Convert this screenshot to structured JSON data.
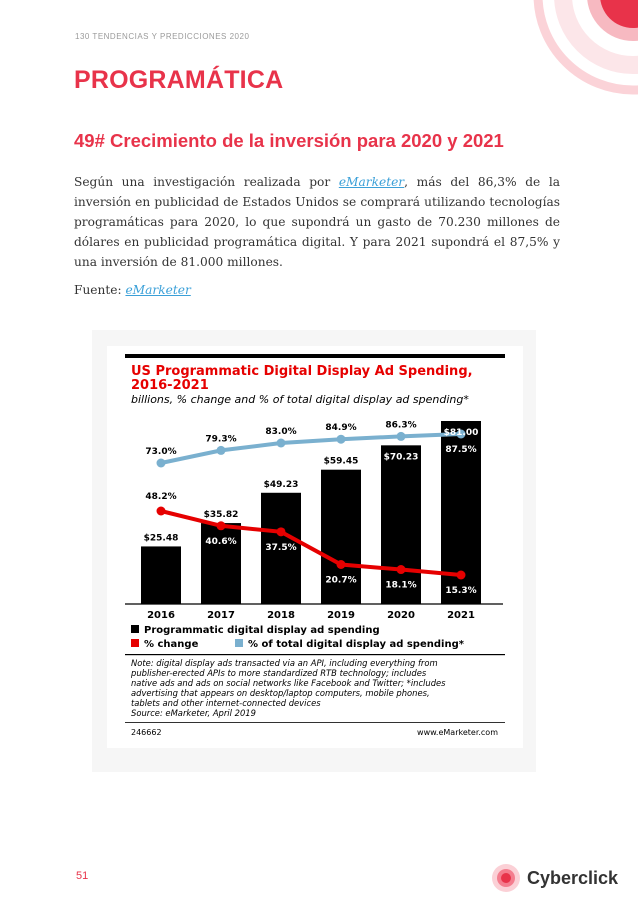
{
  "header": {
    "doc_label": "130 TENDENCIAS Y PREDICCIONES 2020"
  },
  "section": {
    "title": "PROGRAMÁTICA"
  },
  "subsection": {
    "title": "49# Crecimiento de la inversión para 2020 y 2021"
  },
  "body": {
    "part1": "Según una investigación realizada por ",
    "link": "eMarketer",
    "part2": ", más del 86,3% de la inversión en publicidad de Estados Unidos se comprará utilizando tecnologías programáticas para 2020, lo que supondrá un gasto de 70.230 millones de dólares en publicidad programática digital. Y para 2021 supondrá el 87,5% y una inversión de 81.000 millones."
  },
  "source": {
    "label": "Fuente: ",
    "link": "eMarketer"
  },
  "chart_data": {
    "type": "bar",
    "title_line1": "US Programmatic Digital Display Ad Spending,",
    "title_line2": "2016-2021",
    "subtitle": "billions, % change and % of total digital display ad spending*",
    "categories": [
      "2016",
      "2017",
      "2018",
      "2019",
      "2020",
      "2021"
    ],
    "series": [
      {
        "name": "Programmatic digital display ad spending",
        "values": [
          25.48,
          35.82,
          49.23,
          59.45,
          70.23,
          81.0
        ],
        "labels": [
          "$25.48",
          "$35.82",
          "$49.23",
          "$59.45",
          "$70.23",
          "$81.00"
        ],
        "color": "#000000"
      },
      {
        "name": "% change",
        "values": [
          48.2,
          40.6,
          37.5,
          20.7,
          18.1,
          15.3
        ],
        "labels": [
          "48.2%",
          "40.6%",
          "37.5%",
          "20.7%",
          "18.1%",
          "15.3%"
        ],
        "color": "#e60000"
      },
      {
        "name": "% of total digital display ad spending*",
        "values": [
          73.0,
          79.3,
          83.0,
          84.9,
          86.3,
          87.5
        ],
        "labels": [
          "73.0%",
          "79.3%",
          "83.0%",
          "84.9%",
          "86.3%",
          "87.5%"
        ],
        "color": "#7ab0cf"
      }
    ],
    "note_lines": [
      "Note: digital display ads transacted via an API, including everything from",
      "publisher-erected APIs to more standardized RTB technology; includes",
      "native ads and ads on social networks like Facebook and Twitter; *includes",
      "advertising that appears on desktop/laptop computers, mobile phones,",
      "tablets and other internet-connected devices",
      "Source: eMarketer, April 2019"
    ],
    "chart_id": "246662",
    "site": "www.eMarketer.com",
    "title_color": "#e60000"
  },
  "footer": {
    "page_number": "51",
    "logo_text": "Cyberclick"
  },
  "colors": {
    "accent": "#e8334a",
    "link": "#3ba0d8"
  }
}
